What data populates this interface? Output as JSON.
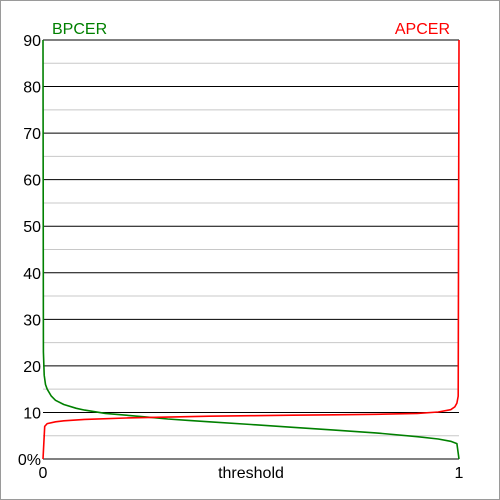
{
  "chart_data": {
    "type": "line",
    "xlabel": "threshold",
    "xlim": [
      0,
      1
    ],
    "ylim": [
      0,
      90
    ],
    "x_tick_labels": [
      "0",
      "1"
    ],
    "y_tick_labels": [
      "0%",
      "10",
      "20",
      "30",
      "40",
      "50",
      "60",
      "70",
      "80",
      "90"
    ],
    "grid": true,
    "series": [
      {
        "name": "BPCER",
        "color": "#008000",
        "label_position": "top-left",
        "x": [
          0,
          0.001,
          0.003,
          0.006,
          0.01,
          0.02,
          0.03,
          0.05,
          0.08,
          0.1,
          0.15,
          0.2,
          0.25,
          0.3,
          0.35,
          0.4,
          0.5,
          0.6,
          0.7,
          0.8,
          0.9,
          0.95,
          0.98,
          0.995,
          1
        ],
        "y": [
          90,
          23,
          18,
          16,
          15,
          13.5,
          12.6,
          11.7,
          10.9,
          10.5,
          9.8,
          9.4,
          9.0,
          8.6,
          8.3,
          8.0,
          7.4,
          6.8,
          6.2,
          5.6,
          4.8,
          4.3,
          3.8,
          3.3,
          0
        ]
      },
      {
        "name": "APCER",
        "color": "#ff0000",
        "label_position": "top-right",
        "x": [
          0,
          0.004,
          0.01,
          0.03,
          0.05,
          0.1,
          0.2,
          0.3,
          0.4,
          0.5,
          0.6,
          0.7,
          0.8,
          0.9,
          0.95,
          0.98,
          0.99,
          0.995,
          0.998,
          1
        ],
        "y": [
          0,
          7.0,
          7.6,
          8.0,
          8.2,
          8.5,
          8.8,
          9.0,
          9.2,
          9.3,
          9.4,
          9.5,
          9.6,
          9.8,
          10.1,
          10.6,
          11.2,
          12.0,
          13.5,
          90
        ]
      }
    ]
  }
}
